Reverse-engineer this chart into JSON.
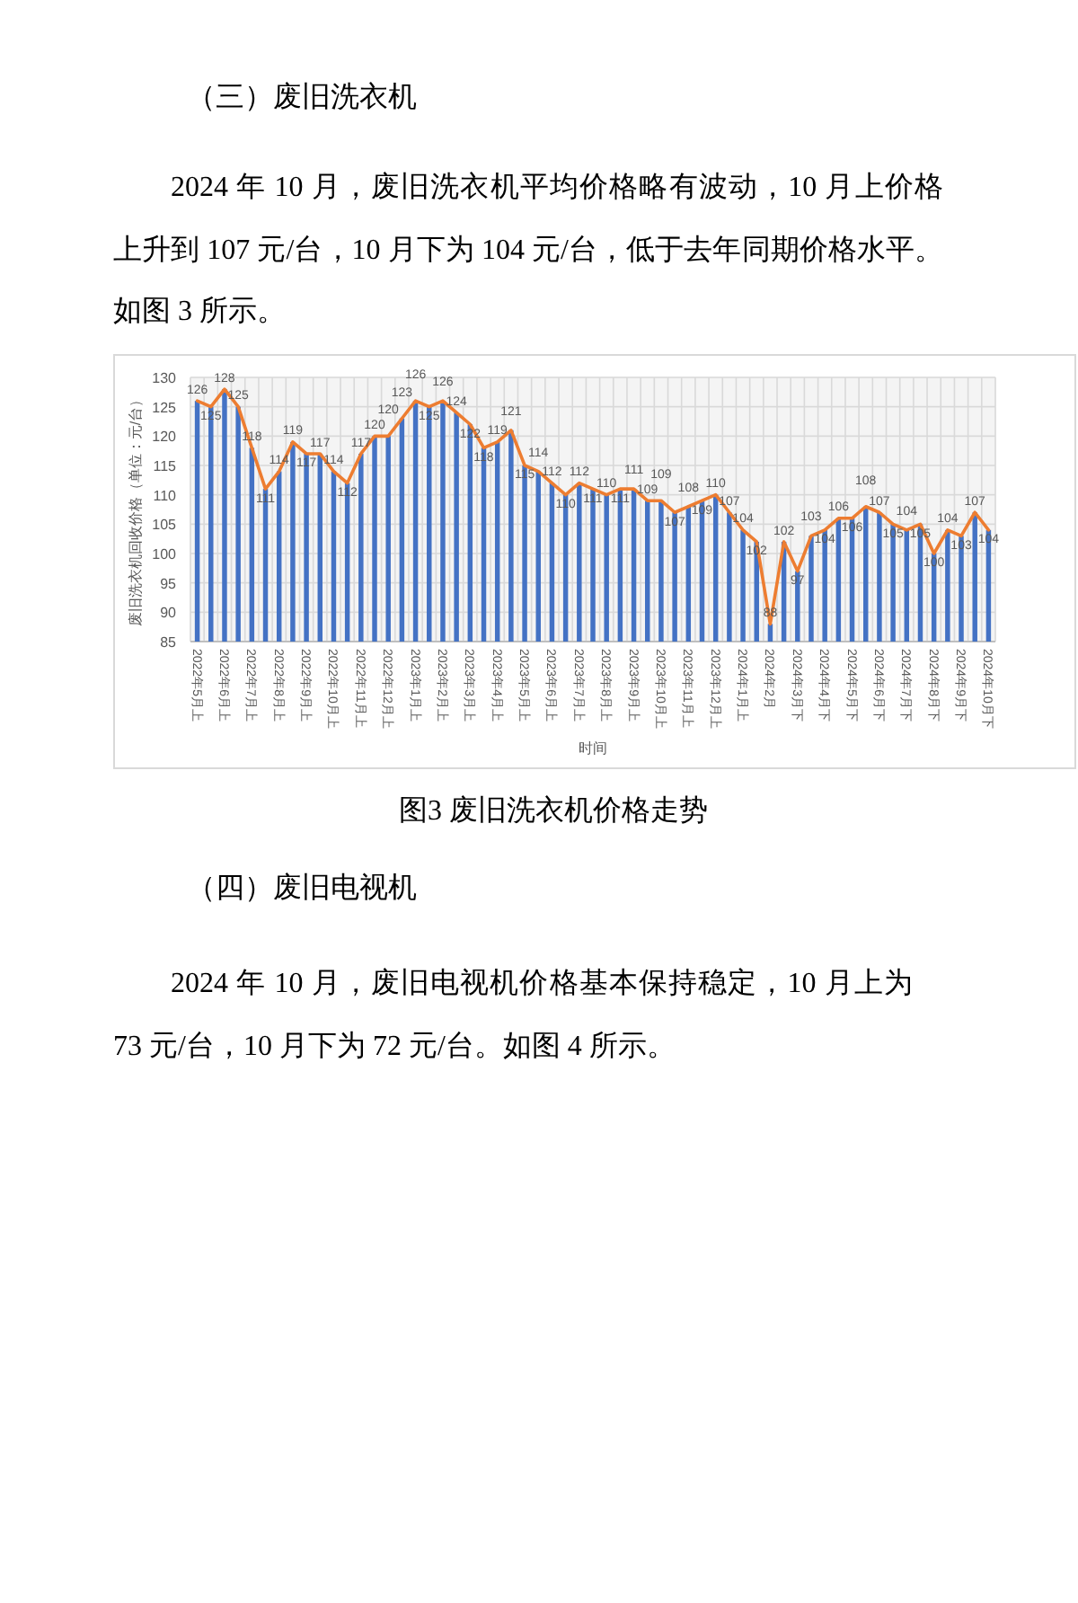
{
  "chart_data": {
    "type": "bar",
    "title": "图3 废旧洗衣机价格走势",
    "xlabel": "时间",
    "ylabel": "废旧洗衣机回收价格（单位：元/台）",
    "annotations": [
      "（三）废旧洗衣机",
      "2024 年 10 月，废旧洗衣机平均价格略有波动，10 月上价格上升到 107 元/台，10 月下为 104 元/台，低于去年同期价格水平。如图 3 所示。",
      "（四）废旧电视机",
      "2024 年 10 月，废旧电视机价格基本保持稳定，10 月上为 73 元/台，10 月下为 72 元/台。如图 4 所示。"
    ],
    "categories": [
      "2022年5月上",
      null,
      "2022年6月上",
      null,
      "2022年7月上",
      null,
      "2022年8月上",
      null,
      "2022年9月上",
      null,
      "2022年10月上",
      null,
      "2022年11月上",
      null,
      "2022年12月上",
      null,
      "2023年1月上",
      null,
      "2023年2月上",
      null,
      "2023年3月上",
      null,
      "2023年4月上",
      null,
      "2023年5月上",
      null,
      "2023年6月上",
      null,
      "2023年7月上",
      null,
      "2023年8月上",
      null,
      "2023年9月上",
      null,
      "2023年10月上",
      null,
      "2023年11月上",
      null,
      "2023年12月上",
      null,
      "2024年1月上",
      null,
      "2024年2月",
      null,
      "2024年3月下",
      null,
      "2024年4月下",
      null,
      "2024年5月下",
      null,
      "2024年6月下",
      null,
      "2024年7月下",
      null,
      "2024年8月下",
      null,
      "2024年9月下",
      null,
      "2024年10月下"
    ],
    "series": [
      {
        "color": "#4472c4",
        "values": [
          126,
          125,
          128,
          125,
          118,
          111,
          114,
          119,
          117,
          117,
          114,
          112,
          117,
          120,
          120,
          123,
          126,
          125,
          126,
          124,
          122,
          118,
          119,
          121,
          115,
          114,
          112,
          110,
          112,
          111,
          110,
          111,
          111,
          109,
          109,
          107,
          108,
          109,
          110,
          107,
          104,
          102,
          88,
          102,
          97,
          103,
          104,
          106,
          106,
          108,
          107,
          105,
          104,
          105,
          100,
          104,
          103,
          107,
          104
        ]
      },
      {
        "type": "line",
        "color": "#ed7d31",
        "data_labels": true,
        "values": [
          126,
          125,
          128,
          125,
          118,
          111,
          114,
          119,
          117,
          117,
          114,
          112,
          117,
          120,
          120,
          123,
          126,
          125,
          126,
          124,
          122,
          118,
          119,
          121,
          115,
          114,
          112,
          110,
          112,
          111,
          110,
          111,
          111,
          109,
          109,
          107,
          108,
          109,
          110,
          107,
          104,
          102,
          88,
          102,
          97,
          103,
          104,
          106,
          106,
          108,
          107,
          105,
          104,
          105,
          100,
          104,
          103,
          107,
          104
        ]
      }
    ],
    "ylim": [
      85,
      130
    ],
    "yticks": [
      85,
      90,
      95,
      100,
      105,
      110,
      115,
      120,
      125,
      130
    ],
    "grid": true
  }
}
